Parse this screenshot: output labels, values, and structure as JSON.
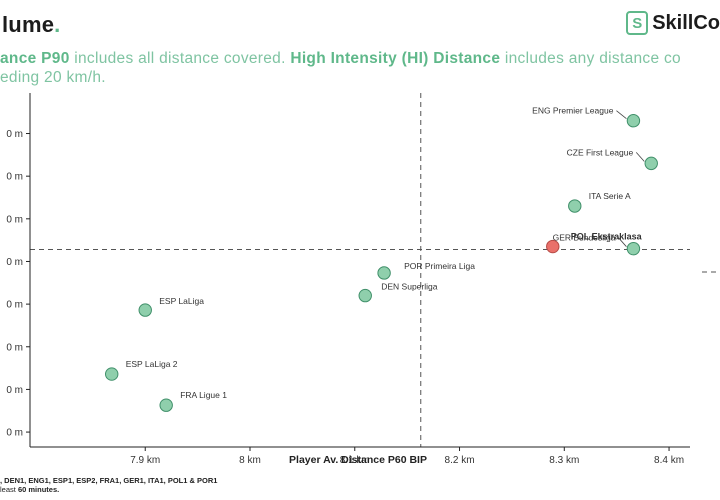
{
  "header": {
    "brand": "lume",
    "brand_dot": ".",
    "logo_mark": "S",
    "logo_text": "SkillCo"
  },
  "subtitle": {
    "part1": "ance P90",
    "part2": " includes all distance covered. ",
    "part3": "High Intensity (HI) Distance",
    "part4": " includes any distance co",
    "line2": "eding 20 km/h."
  },
  "footnote": {
    "line1": ", DEN1, ENG1, ESP1, ESP2, FRA1, GER1, ITA1, POL1 & POR1",
    "line2_a": "least ",
    "line2_b": "60 minutes."
  },
  "colors": {
    "accent": "#5fb88a",
    "point_fill": "#8fcfac",
    "point_stroke": "#3f8f69",
    "highlight_fill": "#e9706a",
    "highlight_stroke": "#b54a45"
  },
  "chart_data": {
    "type": "scatter",
    "xlabel": "Player Av. Distance P60 BIP",
    "ylabel": "",
    "x_ticks": [
      {
        "value": 7.9,
        "label": "7.9 km"
      },
      {
        "value": 8.0,
        "label": "8 km"
      },
      {
        "value": 8.1,
        "label": "8.1 km"
      },
      {
        "value": 8.2,
        "label": "8.2 km"
      },
      {
        "value": 8.3,
        "label": "8.3 km"
      },
      {
        "value": 8.4,
        "label": "8.4 km"
      }
    ],
    "y_ticks": [
      {
        "value": 1,
        "label": "0 m"
      },
      {
        "value": 2,
        "label": "0 m"
      },
      {
        "value": 3,
        "label": "0 m"
      },
      {
        "value": 4,
        "label": "0 m"
      },
      {
        "value": 5,
        "label": "0 m"
      },
      {
        "value": 6,
        "label": "0 m"
      },
      {
        "value": 7,
        "label": "0 m"
      },
      {
        "value": 8,
        "label": "0 m"
      }
    ],
    "xlim": [
      7.79,
      8.42
    ],
    "ylim": [
      0.65,
      8.95
    ],
    "ref_x": 8.163,
    "ref_y": 5.28,
    "points": [
      {
        "label": "ENG Premier League",
        "x": 8.366,
        "y": 8.3,
        "highlight": false
      },
      {
        "label": "CZE First League",
        "x": 8.383,
        "y": 7.3,
        "highlight": false
      },
      {
        "label": "ITA Serie A",
        "x": 8.31,
        "y": 6.3,
        "highlight": false
      },
      {
        "label": "GER Bundesliga",
        "x": 8.366,
        "y": 5.3,
        "highlight": false
      },
      {
        "label": "POL Ekstraklasa",
        "x": 8.289,
        "y": 5.35,
        "highlight": true
      },
      {
        "label": "POR Primeira Liga",
        "x": 8.128,
        "y": 4.73,
        "highlight": false
      },
      {
        "label": "DEN Superliga",
        "x": 8.11,
        "y": 4.2,
        "highlight": false
      },
      {
        "label": "ESP LaLiga",
        "x": 7.9,
        "y": 3.86,
        "highlight": false
      },
      {
        "label": "ESP LaLiga 2",
        "x": 7.868,
        "y": 2.36,
        "highlight": false
      },
      {
        "label": "FRA Ligue 1",
        "x": 7.92,
        "y": 1.63,
        "highlight": false
      }
    ]
  }
}
